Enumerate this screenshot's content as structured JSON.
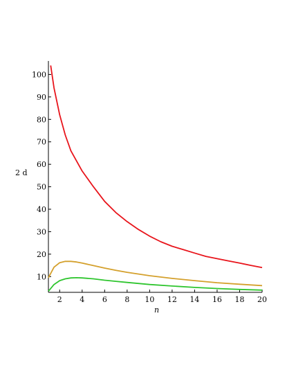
{
  "chart_data": {
    "type": "line",
    "title": "",
    "xlabel": "n",
    "ylabel": "2 d",
    "xlim": [
      1,
      20
    ],
    "ylim": [
      3,
      106
    ],
    "grid": false,
    "legend": "none",
    "x_ticks": [
      2,
      4,
      6,
      8,
      10,
      12,
      14,
      16,
      18,
      20
    ],
    "y_ticks": [
      10,
      20,
      30,
      40,
      50,
      60,
      70,
      80,
      90,
      100
    ],
    "series": [
      {
        "color": "#e8141b",
        "x": [
          1.2,
          1.5,
          2,
          2.5,
          3,
          4,
          5,
          6,
          7,
          8,
          9,
          10,
          11,
          12,
          13,
          14,
          15,
          16,
          17,
          18,
          19,
          20
        ],
        "values": [
          104,
          94,
          82,
          73,
          66,
          57,
          50,
          43.5,
          38.5,
          34.5,
          31,
          28,
          25.5,
          23.5,
          22,
          20.5,
          19,
          18,
          17,
          16,
          15,
          14
        ]
      },
      {
        "color": "#d4a02c",
        "x": [
          1,
          1.5,
          2,
          2.5,
          3,
          3.5,
          4,
          5,
          6,
          7,
          8,
          10,
          12,
          14,
          16,
          18,
          20
        ],
        "values": [
          9.5,
          14.2,
          16.2,
          16.8,
          16.8,
          16.5,
          16.0,
          14.9,
          13.8,
          12.8,
          11.9,
          10.4,
          9.2,
          8.2,
          7.3,
          6.6,
          6.0
        ]
      },
      {
        "color": "#2ec52e",
        "x": [
          1,
          1.5,
          2,
          2.5,
          3,
          3.5,
          4,
          5,
          6,
          7,
          8,
          10,
          12,
          14,
          16,
          18,
          20
        ],
        "values": [
          3.5,
          6.5,
          8.2,
          9.0,
          9.4,
          9.5,
          9.4,
          9.0,
          8.4,
          7.9,
          7.4,
          6.5,
          5.8,
          5.2,
          4.7,
          4.3,
          4.0
        ]
      }
    ]
  }
}
